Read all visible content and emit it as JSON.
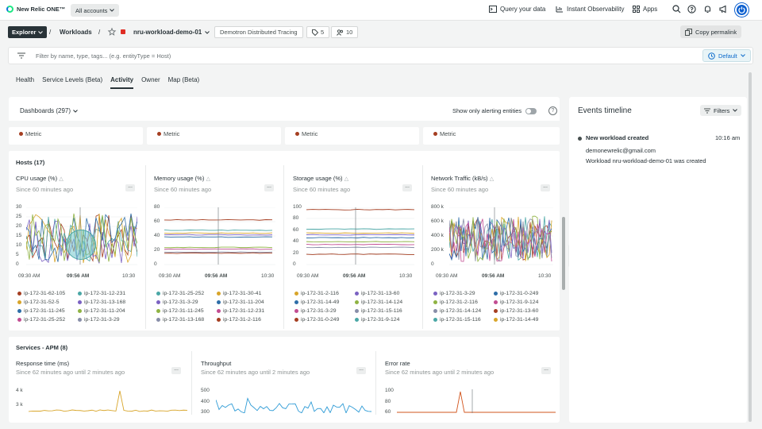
{
  "app": {
    "brand": "New Relic ONE™",
    "account": "All accounts"
  },
  "topnav": {
    "query": "Query your data",
    "instant": "Instant Observability",
    "apps": "Apps"
  },
  "breadcrumb": {
    "explorer": "Explorer",
    "sep1": "/",
    "workloads": "Workloads",
    "sep2": "/",
    "entity": "nru-workload-demo-01",
    "tag": "Demotron Distributed Tracing",
    "tags_count": "5",
    "members_count": "10",
    "copy": "Copy permalink"
  },
  "filter": {
    "placeholder": "Filter by name, type, tags... (e.g. entityType = Host)",
    "default": "Default"
  },
  "tabs": [
    {
      "label": "Health"
    },
    {
      "label": "Service Levels (Beta)"
    },
    {
      "label": "Activity"
    },
    {
      "label": "Owner"
    },
    {
      "label": "Map (Beta)"
    }
  ],
  "dashboards": {
    "label": "Dashboards (297)",
    "alerting": "Show only alerting entities",
    "help": "?"
  },
  "metric_label": "Metric",
  "hosts": {
    "title": "Hosts (17)",
    "widgets": [
      {
        "title": "CPU usage (%)",
        "sub": "Since 60 minutes ago",
        "yticks": [
          "30",
          "25",
          "20",
          "15",
          "10",
          "5",
          "0"
        ],
        "xticks": [
          "09:30 AM",
          "09:56 AM",
          "10:30"
        ],
        "legend": [
          "ip-172-31-62-105",
          "ip-172-31-12-231",
          "ip-172-31-52-5",
          "ip-172-31-13-168",
          "ip-172-31-11-245",
          "ip-172-31-11-204",
          "ip-172-31-25-252",
          "ip-172-31-3-29"
        ]
      },
      {
        "title": "Memory usage (%)",
        "sub": "Since 60 minutes ago",
        "yticks": [
          "80",
          "60",
          "40",
          "20",
          "0"
        ],
        "xticks": [
          "09:30 AM",
          "09:56 AM",
          "10:30"
        ],
        "legend": [
          "ip-172-31-25-252",
          "ip-172-31-30-41",
          "ip-172-31-3-29",
          "ip-172-31-11-204",
          "ip-172-31-11-245",
          "ip-172-31-12-231",
          "ip-172-31-13-168",
          "ip-172-31-2-116"
        ]
      },
      {
        "title": "Storage usage (%)",
        "sub": "Since 60 minutes ago",
        "yticks": [
          "100",
          "80",
          "60",
          "40",
          "20",
          "0"
        ],
        "xticks": [
          "09:30 AM",
          "09:56 AM",
          "10:30"
        ],
        "legend": [
          "ip-172-31-2-116",
          "ip-172-31-13-60",
          "ip-172-31-14-49",
          "ip-172-31-14-124",
          "ip-172-31-3-29",
          "ip-172-31-15-116",
          "ip-172-31-0-249",
          "ip-172-31-9-124"
        ]
      },
      {
        "title": "Network Traffic (kB/s)",
        "sub": "Since 60 minutes ago",
        "yticks": [
          "800 k",
          "600 k",
          "400 k",
          "200 k",
          "0"
        ],
        "xticks": [
          "09:30 AM",
          "09:56 AM",
          "10:30"
        ],
        "legend": [
          "ip-172-31-3-29",
          "ip-172-31-0-249",
          "ip-172-31-2-116",
          "ip-172-31-9-124",
          "ip-172-31-14-124",
          "ip-172-31-13-60",
          "ip-172-31-15-116",
          "ip-172-31-14-49"
        ]
      }
    ]
  },
  "services": {
    "title": "Services - APM (8)",
    "widgets": [
      {
        "title": "Response time (ms)",
        "sub": "Since 62 minutes ago until 2 minutes ago",
        "yticks": [
          "4 k",
          "3 k"
        ]
      },
      {
        "title": "Throughput",
        "sub": "Since 62 minutes ago until 2 minutes ago",
        "yticks": [
          "500",
          "400",
          "300"
        ]
      },
      {
        "title": "Error rate",
        "sub": "Since 62 minutes ago until 2 minutes ago",
        "yticks": [
          "100",
          "80",
          "60"
        ]
      }
    ]
  },
  "timeline": {
    "title": "Events timeline",
    "filters": "Filters",
    "event": {
      "title": "New workload created",
      "time": "10:16 am",
      "user": "demonewrelic@gmail.com",
      "desc": "Workload nru-workload-demo-01 was created"
    }
  },
  "colors": {
    "l1": "#a53e21",
    "l2": "#4aa7a6",
    "l3": "#d8a52a",
    "l4": "#7b62c2",
    "l5": "#2e6ea8",
    "l6": "#8fb343",
    "l7": "#c24d92",
    "l8": "#888ea8"
  },
  "icons": [
    "query-icon",
    "instant-icon",
    "apps-icon",
    "search-icon",
    "help-icon",
    "bell-icon",
    "megaphone-icon",
    "user-icon",
    "star-icon",
    "tag-icon",
    "users-icon",
    "link-icon",
    "filter-icon",
    "clock-icon",
    "chevron-down-icon",
    "warning-icon",
    "more-icon"
  ]
}
